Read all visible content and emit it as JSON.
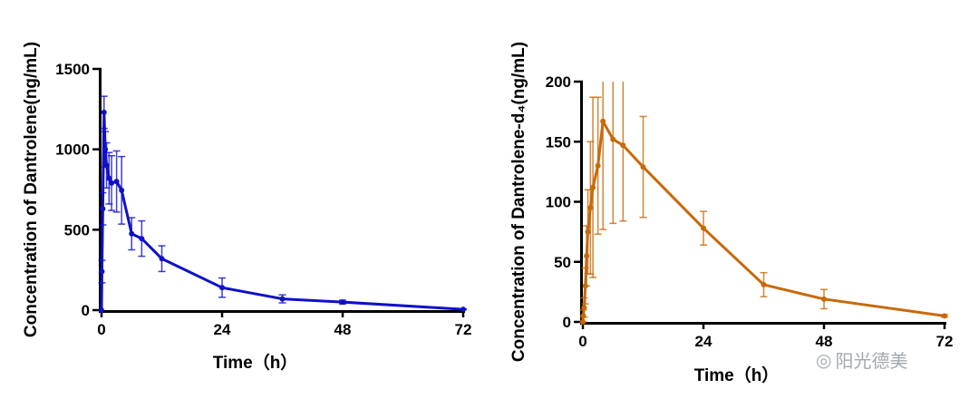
{
  "chart_data": [
    {
      "type": "line",
      "xlabel": "Time（h）",
      "ylabel": "Concentration of Dantrolene(ng/mL)",
      "xlim": [
        0,
        72
      ],
      "ylim": [
        0,
        1500
      ],
      "xticks": [
        0,
        24,
        48,
        72
      ],
      "yticks": [
        0,
        500,
        1000,
        1500
      ],
      "grid": false,
      "color": "#1010c8",
      "series": [
        {
          "x": [
            0,
            0.083,
            0.25,
            0.5,
            0.75,
            1,
            1.5,
            2,
            3,
            4,
            6,
            8,
            12,
            24,
            36,
            48,
            72
          ],
          "y": [
            0,
            240,
            630,
            1230,
            1000,
            900,
            820,
            790,
            800,
            745,
            475,
            445,
            320,
            140,
            70,
            50,
            5
          ],
          "err": [
            0,
            70,
            100,
            100,
            110,
            140,
            160,
            170,
            190,
            210,
            100,
            110,
            80,
            60,
            25,
            12,
            2
          ]
        }
      ]
    },
    {
      "type": "line",
      "xlabel": "Time（h）",
      "ylabel": "Concentration of Dantrolene-d4(ng/mL)",
      "xlim": [
        0,
        72
      ],
      "ylim": [
        0,
        200
      ],
      "xticks": [
        0,
        24,
        48,
        72
      ],
      "yticks": [
        0,
        50,
        100,
        150,
        200
      ],
      "grid": false,
      "color": "#c8690a",
      "series": [
        {
          "x": [
            0,
            0.083,
            0.25,
            0.5,
            0.75,
            1,
            1.5,
            2,
            3,
            4,
            6,
            8,
            12,
            24,
            36,
            48,
            72
          ],
          "y": [
            0,
            5,
            12,
            30,
            55,
            75,
            95,
            112,
            130,
            167,
            152,
            147,
            129,
            78,
            31,
            19,
            5
          ],
          "err": [
            0,
            5,
            8,
            15,
            25,
            35,
            55,
            75,
            57,
            90,
            70,
            63,
            42,
            14,
            10,
            8,
            1
          ]
        }
      ]
    }
  ],
  "watermark": "阳光德美"
}
